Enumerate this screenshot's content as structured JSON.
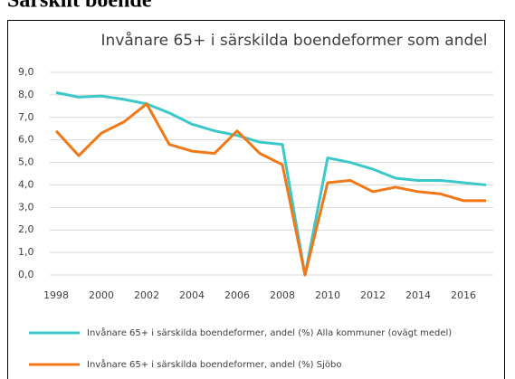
{
  "heading": "Särskilt boende",
  "chart_data": {
    "type": "line",
    "title": "Invånare 65+ i särskilda boendeformer som andel",
    "x": [
      1998,
      1999,
      2000,
      2001,
      2002,
      2003,
      2004,
      2005,
      2006,
      2007,
      2008,
      2009,
      2010,
      2011,
      2012,
      2013,
      2014,
      2015,
      2016,
      2017
    ],
    "xlim": [
      1998,
      2017
    ],
    "xticks": [
      1998,
      2000,
      2002,
      2004,
      2006,
      2008,
      2010,
      2012,
      2014,
      2016
    ],
    "ylim": [
      0,
      9
    ],
    "yticks": [
      {
        "value": 0,
        "label": "0,0"
      },
      {
        "value": 1,
        "label": "1,0"
      },
      {
        "value": 2,
        "label": "2,0"
      },
      {
        "value": 3,
        "label": "3,0"
      },
      {
        "value": 4,
        "label": "4,0"
      },
      {
        "value": 5,
        "label": "5,0"
      },
      {
        "value": 6,
        "label": "6,0"
      },
      {
        "value": 7,
        "label": "7,0"
      },
      {
        "value": 8,
        "label": "8,0"
      },
      {
        "value": 9,
        "label": "9,0"
      }
    ],
    "grid": true,
    "legend": "bottom",
    "series": [
      {
        "name": "Invånare 65+ i särskilda boendeformer, andel (%)  Alla kommuner (ovägt medel)",
        "color": "#3cc8c8",
        "values": [
          8.1,
          7.9,
          7.95,
          7.8,
          7.6,
          7.2,
          6.7,
          6.4,
          6.2,
          5.9,
          5.8,
          0.0,
          5.2,
          5.0,
          4.7,
          4.3,
          4.2,
          4.2,
          4.1,
          4.0
        ]
      },
      {
        "name": "Invånare 65+ i särskilda boendeformer, andel (%)  Sjöbo",
        "color": "#f07818",
        "values": [
          6.4,
          5.3,
          6.3,
          6.8,
          7.6,
          5.8,
          5.5,
          5.4,
          6.4,
          5.4,
          4.9,
          0.0,
          4.1,
          4.2,
          3.7,
          3.9,
          3.7,
          3.6,
          3.3,
          3.3
        ]
      }
    ]
  }
}
